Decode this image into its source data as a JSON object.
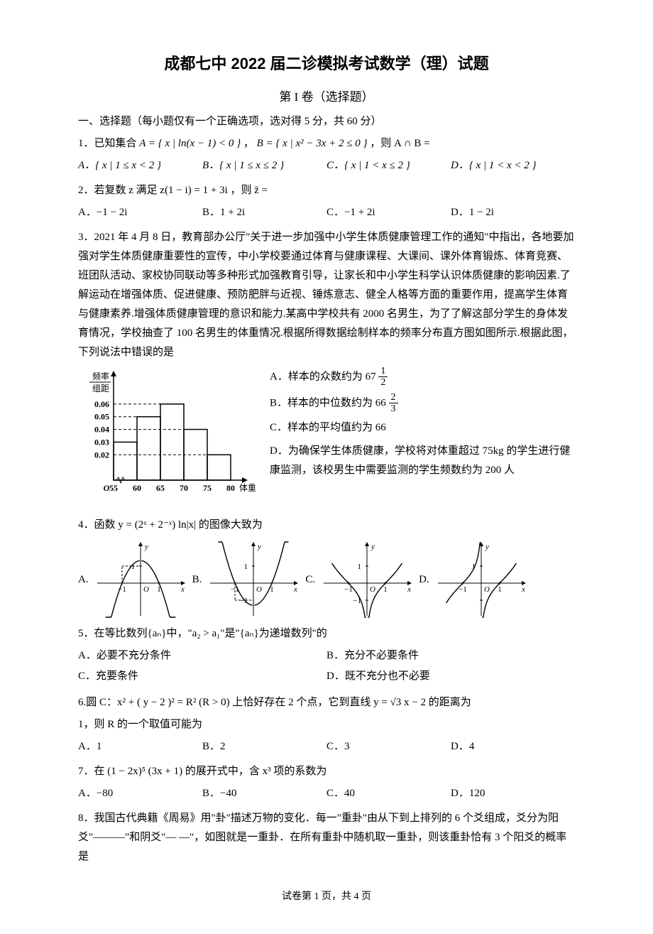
{
  "title": "成都七中 2022 届二诊模拟考试数学（理）试题",
  "subtitle": "第 I 卷（选择题）",
  "section1_heading": "一、选择题（每小题仅有一个正确选项，选对得 5 分，共 60 分）",
  "q1": {
    "text_pre": "1．已知集合 ",
    "A_expr": "A = { x | ln(x − 1) < 0 }",
    "sep": "，",
    "B_expr": "B = { x | x² − 3x + 2 ≤ 0 }",
    "text_post": "，则 A ∩ B =",
    "opts": {
      "A": "A．{ x | 1 ≤ x < 2 }",
      "B": "B．{ x | 1 ≤ x ≤ 2 }",
      "C": "C．{ x | 1 < x ≤ 2 }",
      "D": "D．{ x | 1 < x < 2 }"
    }
  },
  "q2": {
    "text": "2．若复数 z 满足 z(1 − i) = 1 + 3i ，则 z̄ =",
    "opts": {
      "A": "A．−1 − 2i",
      "B": "B．1 + 2i",
      "C": "C．−1 + 2i",
      "D": "D．1 − 2i"
    }
  },
  "q3": {
    "para": "3．2021 年 4 月 8 日，教育部办公厅\"关于进一步加强中小学生体质健康管理工作的通知\"中指出，各地要加强对学生体质健康重要性的宣传，中小学校要通过体育与健康课程、大课间、课外体育锻炼、体育竞赛、班团队活动、家校协同联动等多种形式加强教育引导，让家长和中小学生科学认识体质健康的影响因素.了解运动在增强体质、促进健康、预防肥胖与近视、锤炼意志、健全人格等方面的重要作用，提高学生体育与健康素养.增强体质健康管理的意识和能力.某高中学校共有 2000 名男生，为了了解这部分学生的身体发育情况，学校抽查了 100 名男生的体重情况.根据所得数据绘制样本的频率分布直方图如图所示.根据此图，下列说法中错误的是",
    "chart": {
      "type": "histogram",
      "ylabel_top": "频率",
      "ylabel_bottom": "组距",
      "xlabel": "体重/kg",
      "origin": "O",
      "xticks": [
        "55",
        "60",
        "65",
        "70",
        "75",
        "80"
      ],
      "yticks": [
        "0.02",
        "0.03",
        "0.04",
        "0.05",
        "0.06"
      ],
      "bars": [
        {
          "x0": 55,
          "x1": 60,
          "y": 0.03
        },
        {
          "x0": 60,
          "x1": 65,
          "y": 0.05
        },
        {
          "x0": 65,
          "x1": 70,
          "y": 0.06
        },
        {
          "x0": 70,
          "x1": 75,
          "y": 0.04
        },
        {
          "x0": 75,
          "x1": 80,
          "y": 0.02
        }
      ],
      "colors": {
        "axis": "#000000",
        "bar_stroke": "#000000",
        "bar_fill": "none",
        "dash": "#000000",
        "background": "#ffffff"
      },
      "font_size": 12
    },
    "optA_pre": "A．样本的众数约为",
    "optA_int": "67",
    "optA_num": "1",
    "optA_den": "2",
    "optB_pre": "B．样本的中位数约为",
    "optB_int": "66",
    "optB_num": "2",
    "optB_den": "3",
    "optC": "C．样本的平均值约为 66",
    "optD": "D．为确保学生体质健康，学校将对体重超过 75kg 的学生进行健康监测，该校男生中需要监测的学生频数约为 200 人"
  },
  "q4": {
    "text": "4．函数 y = (2ˣ + 2⁻ˣ) ln|x| 的图像大致为",
    "labels": {
      "A": "A.",
      "B": "B.",
      "C": "C.",
      "D": "D."
    },
    "graph_style": {
      "axis_color": "#000000",
      "bg": "#ffffff",
      "curve_color": "#000000",
      "tick_labels": {
        "neg1": "−1",
        "zero": "O",
        "pos1": "1",
        "ylabel": "y",
        "xlabel": "x",
        "one": "1",
        "negone": "−1"
      },
      "curve_width": 1.4,
      "font_size": 11
    }
  },
  "q5": {
    "text": "5．在等比数列{aₙ}中，\"a₂ > a₁\"是\"{aₙ}为递增数列\"的",
    "opts": {
      "A": "A．必要不充分条件",
      "B": "B．充分不必要条件",
      "C": "C．充要条件",
      "D": "D．既不充分也不必要"
    }
  },
  "q6": {
    "line1": "6.圆 C：x² + ( y − 2 )² = R² (R > 0) 上恰好存在 2 个点，它到直线 y = √3 x − 2 的距离为",
    "line2": "1，则 R 的一个取值可能为",
    "opts": {
      "A": "A．1",
      "B": "B．2",
      "C": "C．3",
      "D": "D．4"
    }
  },
  "q7": {
    "text": "7．在 (1 − 2x)⁵ (3x + 1) 的展开式中，含 x³ 项的系数为",
    "opts": {
      "A": "A．−80",
      "B": "B．−40",
      "C": "C．40",
      "D": "D．120"
    }
  },
  "q8": {
    "text": "8．我国古代典籍《周易》用\"卦\"描述万物的变化．每一\"重卦\"由从下到上排列的 6 个爻组成，爻分为阳爻\"———\"和阴爻\"— —\"，如图就是一重卦．在所有重卦中随机取一重卦，则该重卦恰有 3 个阳爻的概率是"
  },
  "footer": "试卷第 1 页，共 4 页"
}
